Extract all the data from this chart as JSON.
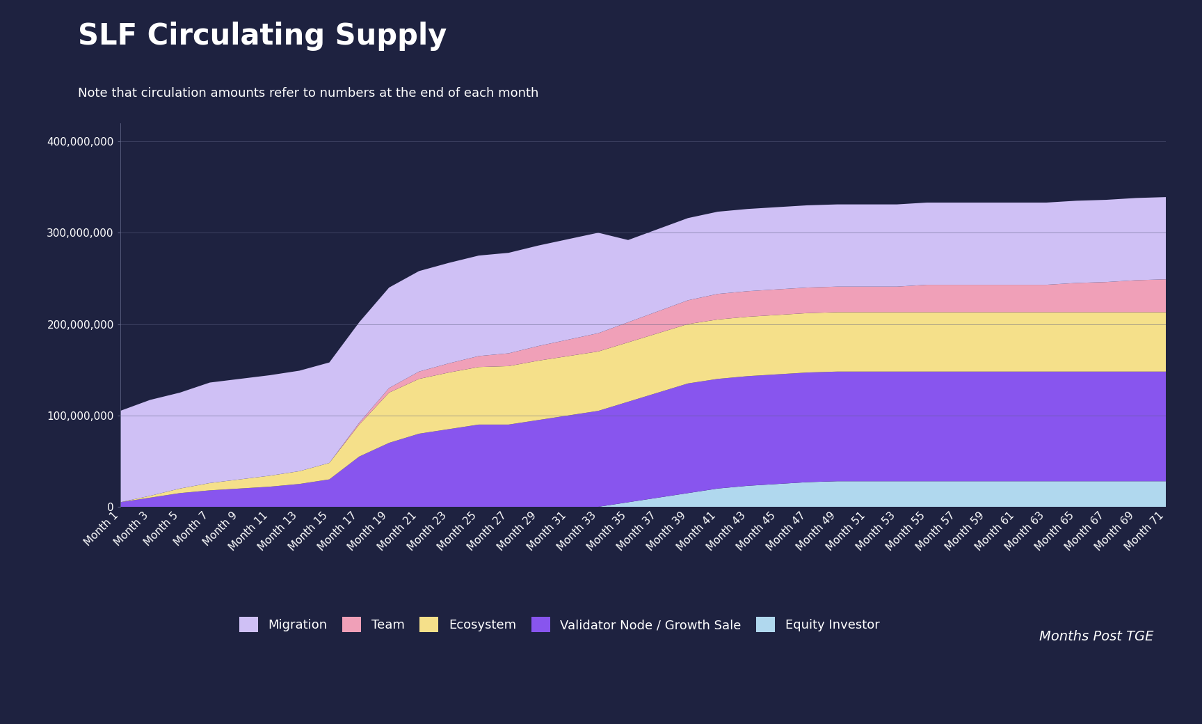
{
  "title": "SLF Circulating Supply",
  "subtitle": "Note that circulation amounts refer to numbers at the end of each month",
  "xlabel_italic": "Months Post TGE",
  "background_color": "#1e2240",
  "plot_bg_color": "#1e2240",
  "text_color": "#ffffff",
  "grid_color": "#5a5f80",
  "months": [
    1,
    3,
    5,
    7,
    9,
    11,
    13,
    15,
    17,
    19,
    21,
    23,
    25,
    27,
    29,
    31,
    33,
    35,
    37,
    39,
    41,
    43,
    45,
    47,
    49,
    51,
    53,
    55,
    57,
    59,
    61,
    63,
    65,
    67,
    69,
    71
  ],
  "series": {
    "Migration": {
      "color": "#cfc0f5",
      "values": [
        100000000,
        105000000,
        105000000,
        110000000,
        110000000,
        110000000,
        110000000,
        110000000,
        110000000,
        110000000,
        110000000,
        110000000,
        110000000,
        110000000,
        110000000,
        110000000,
        110000000,
        90000000,
        90000000,
        90000000,
        90000000,
        90000000,
        90000000,
        90000000,
        90000000,
        90000000,
        90000000,
        90000000,
        90000000,
        90000000,
        90000000,
        90000000,
        90000000,
        90000000,
        90000000,
        90000000
      ]
    },
    "Team": {
      "color": "#f0a0b8",
      "values": [
        0,
        0,
        0,
        0,
        0,
        0,
        0,
        0,
        2000000,
        5000000,
        8000000,
        10000000,
        12000000,
        14000000,
        16000000,
        18000000,
        20000000,
        22000000,
        24000000,
        26000000,
        28000000,
        28000000,
        28000000,
        28000000,
        28000000,
        28000000,
        28000000,
        30000000,
        30000000,
        30000000,
        30000000,
        30000000,
        32000000,
        33000000,
        35000000,
        36000000
      ]
    },
    "Ecosystem": {
      "color": "#f5e08a",
      "values": [
        0,
        2000000,
        5000000,
        8000000,
        10000000,
        12000000,
        14000000,
        18000000,
        35000000,
        55000000,
        60000000,
        62000000,
        63000000,
        64000000,
        65000000,
        65000000,
        65000000,
        65000000,
        65000000,
        65000000,
        65000000,
        65000000,
        65000000,
        65000000,
        65000000,
        65000000,
        65000000,
        65000000,
        65000000,
        65000000,
        65000000,
        65000000,
        65000000,
        65000000,
        65000000,
        65000000
      ]
    },
    "Validator Node / Growth Sale": {
      "color": "#8855ee",
      "values": [
        5000000,
        10000000,
        15000000,
        18000000,
        20000000,
        22000000,
        25000000,
        30000000,
        55000000,
        70000000,
        80000000,
        85000000,
        90000000,
        90000000,
        95000000,
        100000000,
        105000000,
        110000000,
        115000000,
        120000000,
        120000000,
        120000000,
        120000000,
        120000000,
        120000000,
        120000000,
        120000000,
        120000000,
        120000000,
        120000000,
        120000000,
        120000000,
        120000000,
        120000000,
        120000000,
        120000000
      ]
    },
    "Equity Investor": {
      "color": "#b0d8ee",
      "values": [
        0,
        0,
        0,
        0,
        0,
        0,
        0,
        0,
        0,
        0,
        0,
        0,
        0,
        0,
        0,
        0,
        0,
        5000000,
        10000000,
        15000000,
        20000000,
        23000000,
        25000000,
        27000000,
        28000000,
        28000000,
        28000000,
        28000000,
        28000000,
        28000000,
        28000000,
        28000000,
        28000000,
        28000000,
        28000000,
        28000000
      ]
    }
  },
  "stack_order": [
    "Equity Investor",
    "Validator Node / Growth Sale",
    "Ecosystem",
    "Team",
    "Migration"
  ],
  "legend_order": [
    "Migration",
    "Team",
    "Ecosystem",
    "Validator Node / Growth Sale",
    "Equity Investor"
  ],
  "ylim": [
    0,
    420000000
  ],
  "yticks": [
    0,
    100000000,
    200000000,
    300000000,
    400000000
  ],
  "title_fontsize": 30,
  "subtitle_fontsize": 13,
  "tick_fontsize": 11,
  "legend_fontsize": 13
}
